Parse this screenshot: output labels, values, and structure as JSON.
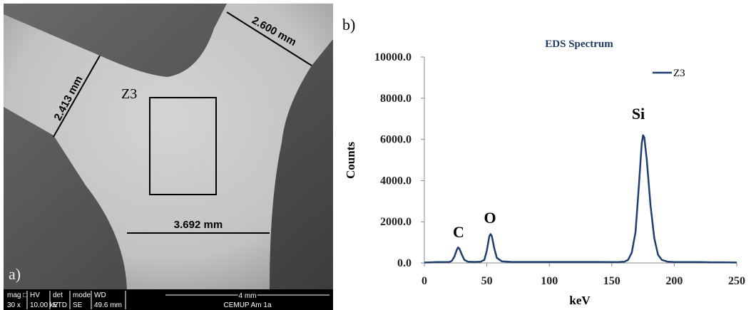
{
  "sem_panel": {
    "label": "a)",
    "region": "Z3",
    "measurements": [
      "2.600 mm",
      "2.413 mm",
      "3.692 mm"
    ],
    "info_bar": {
      "headers": [
        "mag □",
        "HV",
        "det",
        "mode",
        "WD"
      ],
      "values": [
        "30 x",
        "10.00 kV",
        "ETD",
        "SE",
        "49.6 mm"
      ],
      "scale": "4 mm",
      "lab": "CEMUP  Am 1a"
    }
  },
  "chart_panel_label": "b)",
  "chart_data": {
    "type": "line",
    "title": "EDS Spectrum",
    "x_label": "keV",
    "y_label": "Counts",
    "x": [
      0,
      5,
      10,
      15,
      20,
      22,
      24,
      26,
      27,
      28,
      30,
      32,
      35,
      40,
      45,
      48,
      50,
      52,
      53,
      54,
      56,
      58,
      62,
      70,
      80,
      90,
      100,
      110,
      120,
      130,
      140,
      150,
      155,
      160,
      163,
      166,
      169,
      172,
      174,
      175,
      176,
      178,
      181,
      184,
      187,
      190,
      195,
      200,
      210,
      220,
      230,
      240,
      250
    ],
    "series": [
      {
        "name": "Z3",
        "color": "#1f3f6e",
        "values": [
          20,
          30,
          40,
          40,
          50,
          100,
          300,
          650,
          750,
          700,
          400,
          150,
          60,
          50,
          60,
          150,
          600,
          1300,
          1400,
          1300,
          700,
          250,
          80,
          50,
          50,
          50,
          50,
          50,
          50,
          50,
          50,
          40,
          40,
          60,
          150,
          500,
          1500,
          4000,
          5800,
          6200,
          6100,
          5000,
          2800,
          1200,
          400,
          150,
          60,
          40,
          40,
          40,
          30,
          30,
          20
        ]
      }
    ],
    "annotations": [
      "C",
      "O",
      "Si"
    ],
    "xlim": [
      0,
      250
    ],
    "xticks": [
      0,
      50,
      100,
      150,
      200,
      250
    ],
    "ylim": [
      0,
      10000
    ],
    "yticks": [
      {
        "value": 0,
        "label": "0.0"
      },
      {
        "value": 2000,
        "label": "2000.0"
      },
      {
        "value": 4000,
        "label": "4000.0"
      },
      {
        "value": 6000,
        "label": "6000.0"
      },
      {
        "value": 8000,
        "label": "8000.0"
      },
      {
        "value": 10000,
        "label": "10000.0"
      }
    ],
    "legend": "top-right"
  }
}
